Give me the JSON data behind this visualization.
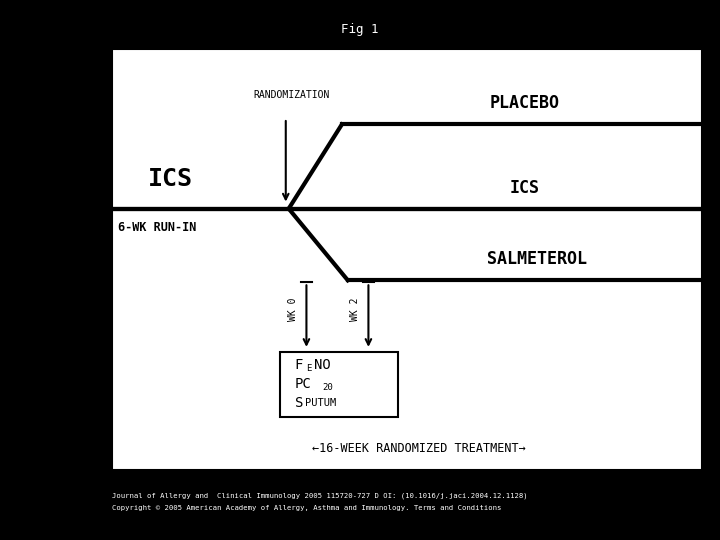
{
  "title": "Fig 1",
  "background_color": "#000000",
  "figure_bg": "#ffffff",
  "footer_line1": "Journal of Allergy and  Clinical Immunology 2005 115720-727 D OI: (10.1016/j.jaci.2004.12.1128)",
  "footer_line2": "Copyright © 2005 American Academy of Allergy, Asthma and Immunology. Terms and Conditions",
  "label_randomization": "RANDOMIZATION",
  "label_ics_left": "ICS",
  "label_6wk": "6-WK RUN-IN",
  "label_placebo": "PLACEBO",
  "label_ics_right": "ICS",
  "label_salmeterol": "SALMETEROL",
  "label_wk0": "WK 0",
  "label_wk2": "WK 2",
  "label_16wk": "←16-WEEK RANDOMIZED TREATMENT→"
}
